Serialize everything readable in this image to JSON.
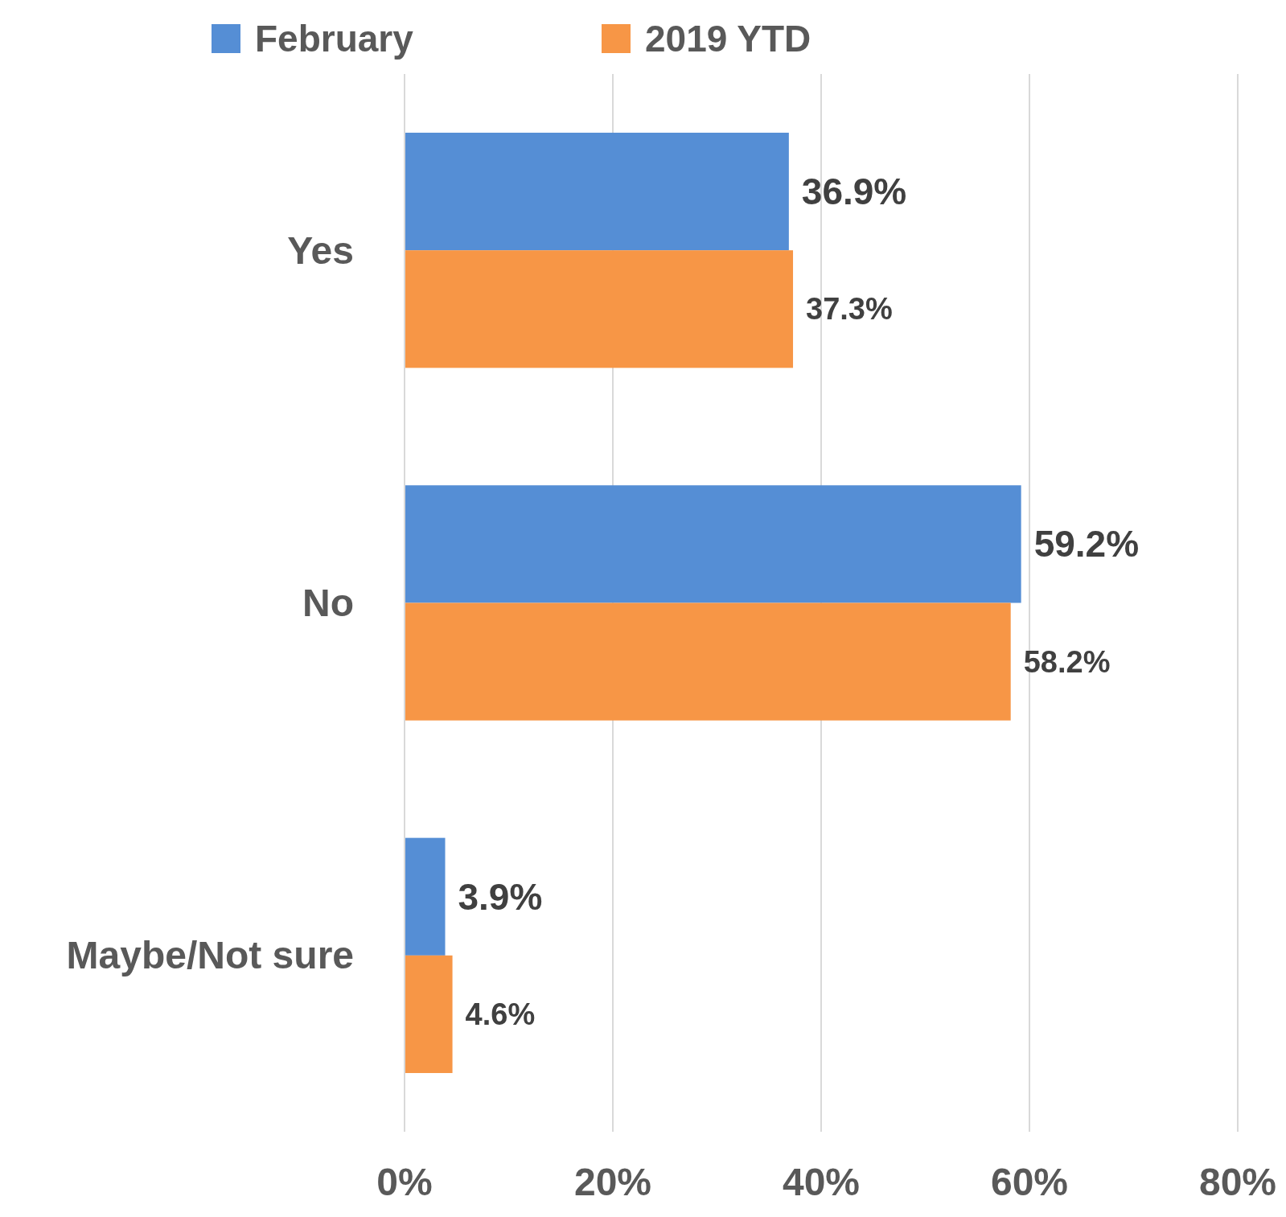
{
  "chart_data": {
    "type": "bar",
    "orientation": "horizontal",
    "categories": [
      "Yes",
      "No",
      "Maybe/Not sure"
    ],
    "series": [
      {
        "name": "February",
        "color": "#558ed5",
        "values": [
          36.9,
          59.2,
          3.9
        ],
        "value_labels": [
          "36.9%",
          "59.2%",
          "3.9%"
        ]
      },
      {
        "name": "2019 YTD",
        "color": "#f79646",
        "values": [
          37.3,
          58.2,
          4.6
        ],
        "value_labels": [
          "37.3%",
          "58.2%",
          "4.6%"
        ]
      }
    ],
    "xlim": [
      0,
      80
    ],
    "xticks": [
      {
        "value": 0,
        "label": "0%"
      },
      {
        "value": 20,
        "label": "20%"
      },
      {
        "value": 40,
        "label": "40%"
      },
      {
        "value": 60,
        "label": "60%"
      },
      {
        "value": 80,
        "label": "80%"
      }
    ],
    "grid": "x",
    "legend": "top"
  }
}
